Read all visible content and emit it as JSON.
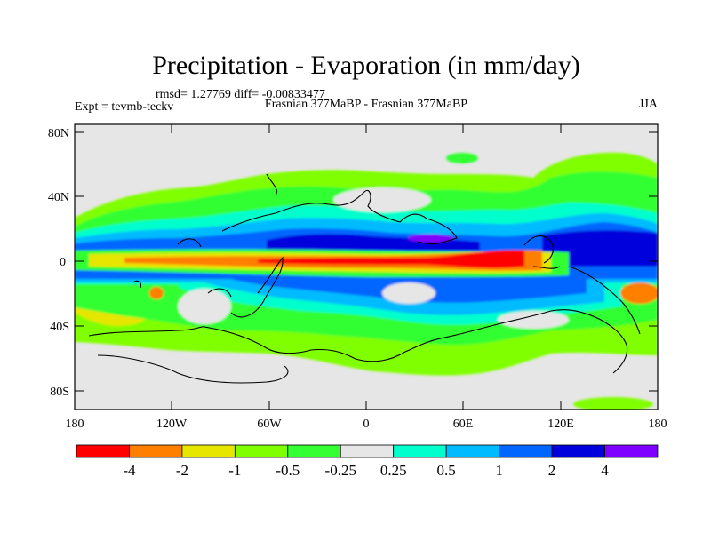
{
  "chart_data": {
    "type": "heatmap",
    "title": "Precipitation - Evaporation (in mm/day)",
    "stats": "rmsd= 1.27769 diff= -0.00833477",
    "left_label": "Expt = tevmb-teckv",
    "center_label": "Frasnian 377MaBP - Frasnian 377MaBP",
    "right_label": "JJA",
    "x_ticks": [
      "180",
      "120W",
      "60W",
      "0",
      "60E",
      "120E",
      "180"
    ],
    "y_ticks": [
      "80N",
      "40N",
      "0",
      "40S",
      "80S"
    ],
    "xlim": [
      -180,
      180
    ],
    "ylim": [
      -90,
      90
    ],
    "colorbar": {
      "levels": [
        "-4",
        "-2",
        "-1",
        "-0.5",
        "-0.25",
        "0.25",
        "0.5",
        "1",
        "2",
        "4"
      ],
      "colors": [
        "#ff0000",
        "#ff8000",
        "#e6e600",
        "#80ff00",
        "#33ff33",
        "#e6e6e6",
        "#00ffcc",
        "#00bbff",
        "#0066ff",
        "#0000dd",
        "#8000ff"
      ]
    },
    "background_color": "#e6e6e6"
  }
}
